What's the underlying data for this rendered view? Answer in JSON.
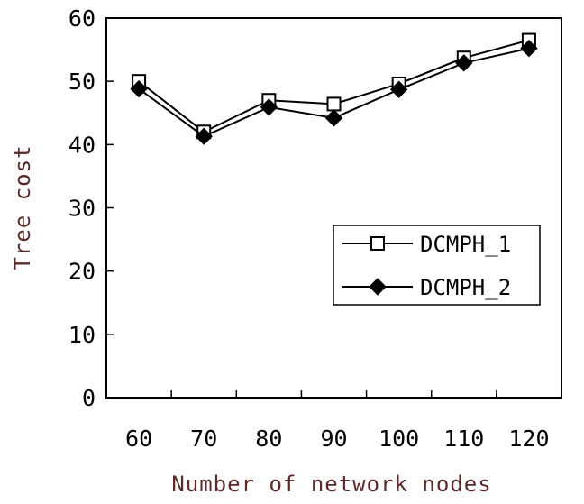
{
  "chart_data": {
    "type": "line",
    "x": [
      60,
      70,
      80,
      90,
      100,
      110,
      120
    ],
    "x_tick_labels": [
      "60",
      "70",
      "80",
      "90",
      "100",
      "110",
      "120"
    ],
    "y_tick_labels": [
      "0",
      "10",
      "20",
      "30",
      "40",
      "50",
      "60"
    ],
    "ylim": [
      0,
      60
    ],
    "xlabel": "Number of network nodes",
    "ylabel": "Tree cost",
    "grid": false,
    "legend_position": "right",
    "series": [
      {
        "name": "DCMPH_1",
        "marker": "open-square",
        "color": "#000000",
        "values": [
          50.0,
          42.0,
          47.0,
          46.4,
          49.6,
          53.7,
          56.5
        ]
      },
      {
        "name": "DCMPH_2",
        "marker": "filled-diamond",
        "color": "#000000",
        "values": [
          48.8,
          41.3,
          45.9,
          44.2,
          48.7,
          52.9,
          55.2
        ]
      }
    ]
  }
}
